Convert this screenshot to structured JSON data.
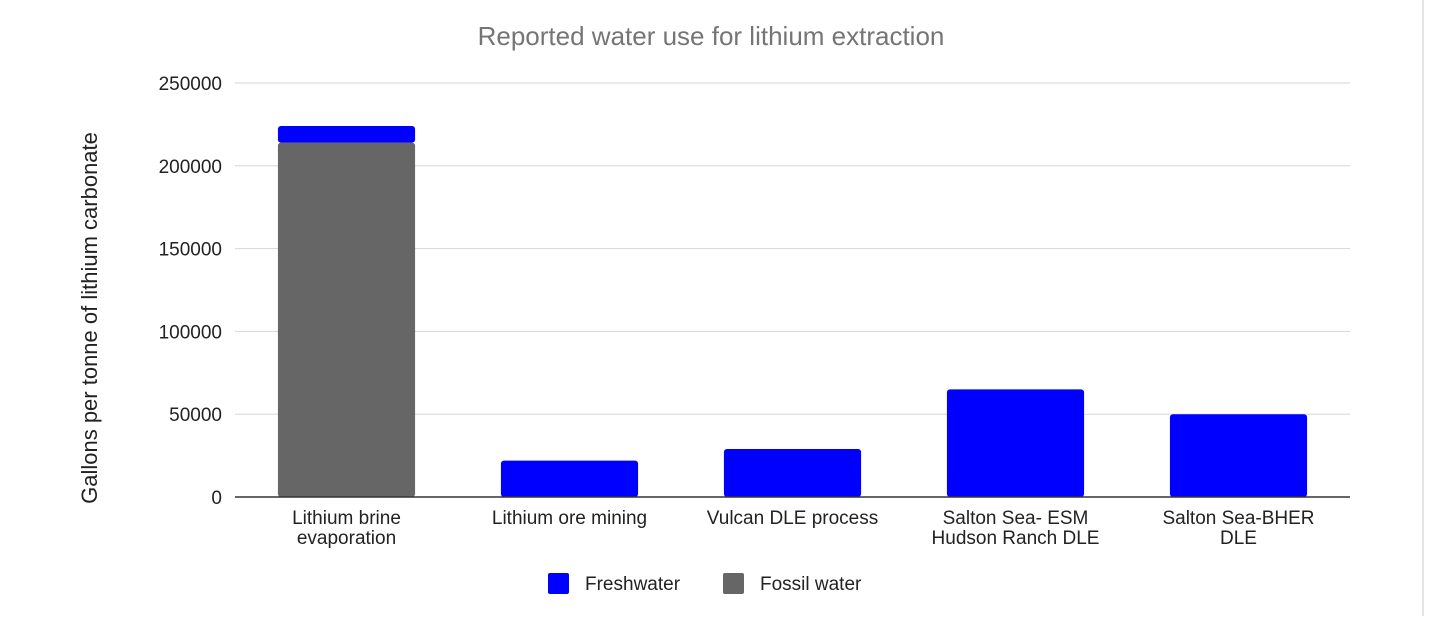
{
  "chart_data": {
    "type": "bar",
    "stacked": true,
    "title": "Reported water use for lithium extraction",
    "xlabel": "",
    "ylabel": "Gallons per tonne of lithium carbonate",
    "ylim": [
      0,
      250000
    ],
    "yticks": [
      0,
      50000,
      100000,
      150000,
      200000,
      250000
    ],
    "grid": true,
    "legend_position": "bottom",
    "categories": [
      [
        "Lithium brine",
        "evaporation"
      ],
      [
        "Lithium ore mining"
      ],
      [
        "Vulcan DLE process"
      ],
      [
        "Salton Sea- ESM",
        "Hudson Ranch DLE"
      ],
      [
        "Salton Sea-BHER",
        "DLE"
      ]
    ],
    "series": [
      {
        "name": "Fossil water",
        "color": "#666666",
        "values": [
          214000,
          0,
          0,
          0,
          0
        ]
      },
      {
        "name": "Freshwater",
        "color": "#0000ff",
        "values": [
          10000,
          22000,
          29000,
          65000,
          50000
        ]
      }
    ],
    "legend_order": [
      "Freshwater",
      "Fossil water"
    ]
  }
}
